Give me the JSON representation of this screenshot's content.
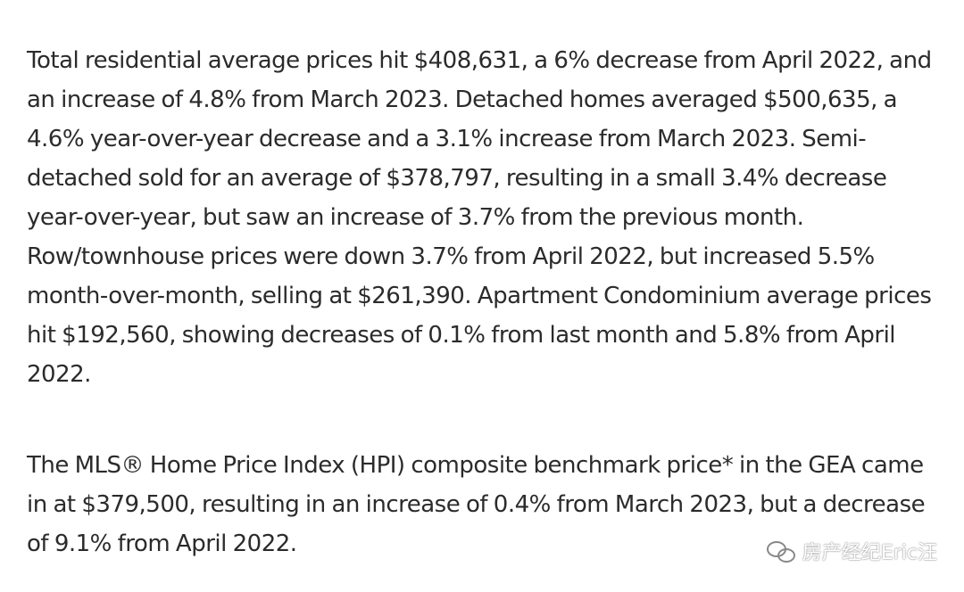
{
  "article": {
    "paragraphs": [
      "Total residential average prices hit $408,631, a 6% decrease from April 2022, and an increase of 4.8% from March 2023. Detached homes averaged $500,635, a 4.6% year-over-year decrease and a 3.1% increase from March 2023. Semi-detached sold for an average of $378,797, resulting in a small 3.4% decrease year-over-year, but saw an increase of 3.7% from the previous month. Row/townhouse prices were down 3.7% from April 2022, but increased 5.5% month-over-month, selling at $261,390. Apartment Condominium average prices hit $192,560, showing decreases of 0.1% from last month and 5.8% from April 2022.",
      "The MLS® Home Price Index (HPI) composite benchmark price* in the GEA came in at $379,500, resulting in an increase of 0.4% from March 2023, but a decrease of 9.1% from April 2022."
    ]
  },
  "watermark": {
    "icon": "wechat-icon",
    "text": "房产经纪Eric汪"
  }
}
